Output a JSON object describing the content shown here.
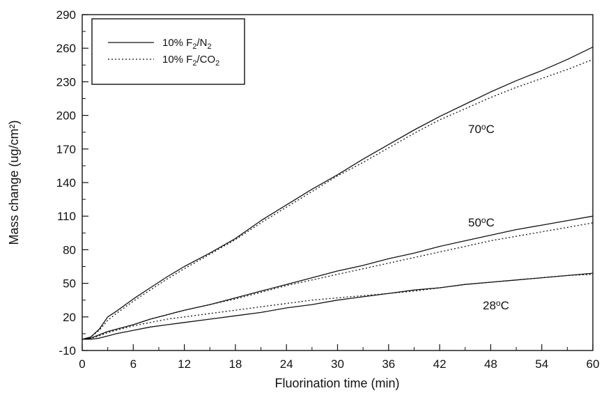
{
  "chart_data": {
    "type": "line",
    "xlabel": "Fluorination time (min)",
    "ylabel": "Mass change (ug/cm²)",
    "xlim": [
      0,
      60
    ],
    "ylim": [
      -10,
      290
    ],
    "x_ticks": [
      "0",
      "6",
      "12",
      "18",
      "24",
      "30",
      "36",
      "42",
      "48",
      "54",
      "60"
    ],
    "y_ticks": [
      "-10",
      "20",
      "50",
      "80",
      "110",
      "140",
      "170",
      "200",
      "230",
      "260",
      "290"
    ],
    "legend_position": "top-left",
    "legend": [
      {
        "label_main": "10% F",
        "label_sub": "2",
        "label_slash": "/N",
        "label_sub2": "2",
        "style": "solid"
      },
      {
        "label_main": "10% F",
        "label_sub": "2",
        "label_slash": "/CO",
        "label_sub2": "2",
        "style": "dotted"
      }
    ],
    "annotations": [
      {
        "text_main": "70",
        "text_sup": "o",
        "text_end": "C"
      },
      {
        "text_main": "50",
        "text_sup": "o",
        "text_end": "C"
      },
      {
        "text_main": "28",
        "text_sup": "o",
        "text_end": "C"
      }
    ],
    "x": [
      0,
      1,
      2,
      3,
      4,
      6,
      8,
      10,
      12,
      15,
      18,
      21,
      24,
      27,
      30,
      33,
      36,
      39,
      42,
      45,
      48,
      51,
      54,
      57,
      60
    ],
    "series": [
      {
        "group": "70°C",
        "style": "solid",
        "values": [
          0,
          2,
          9,
          20,
          25,
          36,
          46,
          56,
          65,
          77,
          90,
          106,
          120,
          134,
          147,
          161,
          174,
          187,
          199,
          210,
          221,
          231,
          240,
          250,
          261
        ]
      },
      {
        "group": "70°C",
        "style": "dotted",
        "values": [
          0,
          2,
          8,
          17,
          23,
          34,
          44,
          54,
          63,
          76,
          89,
          104,
          118,
          132,
          146,
          158,
          171,
          184,
          196,
          206,
          216,
          225,
          233,
          241,
          250
        ]
      },
      {
        "group": "50°C",
        "style": "solid",
        "values": [
          0,
          1,
          4,
          7,
          9,
          13,
          18,
          22,
          26,
          31,
          37,
          43,
          49,
          55,
          61,
          66,
          72,
          77,
          83,
          88,
          93,
          98,
          102,
          106,
          110
        ]
      },
      {
        "group": "50°C",
        "style": "dotted",
        "values": [
          0,
          1,
          4,
          7,
          9,
          13,
          18,
          22,
          26,
          31,
          36,
          42,
          48,
          53,
          58,
          63,
          68,
          73,
          78,
          83,
          88,
          92,
          96,
          100,
          104
        ]
      },
      {
        "group": "28°C",
        "style": "solid",
        "values": [
          0,
          0,
          1,
          3,
          5,
          8,
          11,
          13,
          15,
          18,
          21,
          24,
          28,
          31,
          35,
          38,
          41,
          44,
          46,
          49,
          51,
          53,
          55,
          57,
          59
        ]
      },
      {
        "group": "28°C",
        "style": "dotted",
        "values": [
          0,
          1,
          3,
          6,
          8,
          12,
          15,
          18,
          20,
          23,
          26,
          29,
          32,
          35,
          37,
          39,
          41,
          43,
          46,
          49,
          51,
          53,
          55,
          57,
          58
        ]
      }
    ]
  }
}
